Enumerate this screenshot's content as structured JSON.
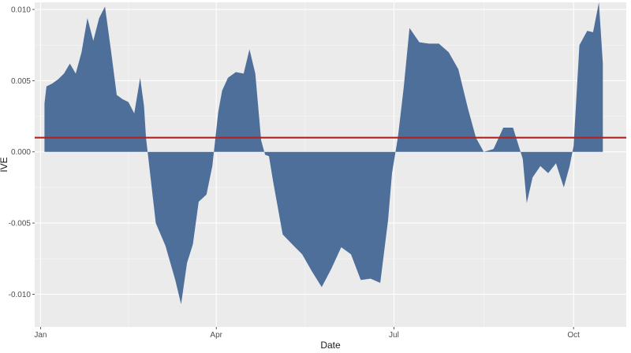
{
  "chart_data": {
    "type": "area",
    "xlabel": "Date",
    "ylabel": "IVE",
    "grid": true,
    "ylim": [
      -0.0123,
      0.0105
    ],
    "xlim": [
      "2016-12-29",
      "2017-10-28"
    ],
    "x_ticks": [
      {
        "value": "2017-01-01",
        "label": "Jan"
      },
      {
        "value": "2017-04-01",
        "label": "Apr"
      },
      {
        "value": "2017-07-01",
        "label": "Jul"
      },
      {
        "value": "2017-10-01",
        "label": "Oct"
      }
    ],
    "y_ticks": [
      {
        "value": 0.01,
        "label": "0.010"
      },
      {
        "value": 0.005,
        "label": "0.005"
      },
      {
        "value": 0.0,
        "label": "0.000"
      },
      {
        "value": -0.005,
        "label": "-0.005"
      },
      {
        "value": -0.01,
        "label": "-0.010"
      }
    ],
    "reference_line": {
      "value": 0.001,
      "color": "#b22222"
    },
    "colors": {
      "fill": "#4e6f9a",
      "panel": "#ebebeb",
      "grid": "#ffffff",
      "reference_line": "#b22222"
    },
    "series": [
      {
        "x": [
          "2017-01-03",
          "2017-01-04",
          "2017-01-07",
          "2017-01-10",
          "2017-01-13",
          "2017-01-16",
          "2017-01-19",
          "2017-01-22",
          "2017-01-25",
          "2017-01-28",
          "2017-01-31",
          "2017-02-03",
          "2017-02-06",
          "2017-02-09",
          "2017-02-12",
          "2017-02-15",
          "2017-02-18",
          "2017-02-21",
          "2017-02-23",
          "2017-02-24",
          "2017-03-01",
          "2017-03-06",
          "2017-03-11",
          "2017-03-14",
          "2017-03-17",
          "2017-03-20",
          "2017-03-23",
          "2017-03-27",
          "2017-03-30",
          "2017-04-02",
          "2017-04-04",
          "2017-04-07",
          "2017-04-11",
          "2017-04-15",
          "2017-04-18",
          "2017-04-21",
          "2017-04-24",
          "2017-04-26",
          "2017-04-28",
          "2017-04-30",
          "2017-05-05",
          "2017-05-10",
          "2017-05-15",
          "2017-05-20",
          "2017-05-25",
          "2017-05-30",
          "2017-06-04",
          "2017-06-09",
          "2017-06-14",
          "2017-06-19",
          "2017-06-24",
          "2017-06-28",
          "2017-06-30",
          "2017-07-03",
          "2017-07-06",
          "2017-07-09",
          "2017-07-14",
          "2017-07-19",
          "2017-07-24",
          "2017-07-29",
          "2017-08-03",
          "2017-08-08",
          "2017-08-12",
          "2017-08-16",
          "2017-08-21",
          "2017-08-26",
          "2017-08-31",
          "2017-09-05",
          "2017-09-07",
          "2017-09-10",
          "2017-09-14",
          "2017-09-18",
          "2017-09-22",
          "2017-09-26",
          "2017-09-29",
          "2017-10-01",
          "2017-10-04",
          "2017-10-08",
          "2017-10-11",
          "2017-10-14",
          "2017-10-16"
        ],
        "y": [
          0.0034,
          0.0046,
          0.0048,
          0.0051,
          0.0055,
          0.0062,
          0.0055,
          0.007,
          0.0094,
          0.0078,
          0.0094,
          0.0102,
          0.0072,
          0.004,
          0.0037,
          0.0035,
          0.0027,
          0.0052,
          0.0032,
          0.001,
          -0.005,
          -0.0066,
          -0.009,
          -0.0107,
          -0.0078,
          -0.0065,
          -0.0035,
          -0.003,
          -0.001,
          0.0028,
          0.0043,
          0.0052,
          0.0056,
          0.0055,
          0.0072,
          0.0055,
          0.0008,
          -0.0002,
          -0.0003,
          -0.002,
          -0.0058,
          -0.0065,
          -0.0072,
          -0.0084,
          -0.0095,
          -0.0082,
          -0.0067,
          -0.0072,
          -0.009,
          -0.0089,
          -0.0092,
          -0.0048,
          -0.0015,
          0.001,
          0.0045,
          0.0087,
          0.0077,
          0.0076,
          0.0076,
          0.007,
          0.0058,
          0.003,
          0.001,
          0.0,
          0.0002,
          0.0017,
          0.0017,
          -0.0005,
          -0.0036,
          -0.0018,
          -0.001,
          -0.0015,
          -0.0008,
          -0.0025,
          -0.001,
          0.0004,
          0.0075,
          0.0085,
          0.0084,
          0.0105,
          0.0062
        ]
      }
    ]
  }
}
